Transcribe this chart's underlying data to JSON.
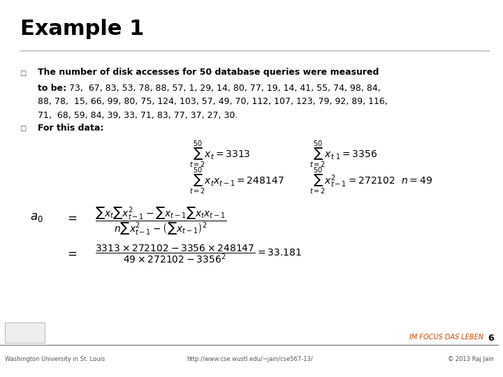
{
  "title": "Example 1",
  "bullet1_bold": "The number of disk accesses for 50 database queries were measured",
  "bullet1_bold2": "to be:",
  "bullet1_normal": " 73,  67, 83, 53, 78, 88, 57, 1, 29, 14, 80, 77, 19, 14, 41, 55, 74, 98, 84,\n    88, 78,  15, 66, 99, 80, 75, 124, 103, 57, 49, 70, 112, 107, 123, 79, 92, 89, 116,\n    71,  68, 59, 84, 39, 33, 71, 83, 77, 37, 27, 30.",
  "bullet2_bold": "For this data:",
  "bg_color": "#ffffff",
  "title_color": "#000000",
  "text_color": "#000000",
  "footer_left": "Washington University in St. Louis",
  "footer_mid": "http://www.cse.wustl.edu/~jain/cse567-13/",
  "footer_right": "© 2013 Raj Jain",
  "page_num": "6",
  "brand": "IM FOCUS DAS LEBEN",
  "separator_color": "#cccccc"
}
